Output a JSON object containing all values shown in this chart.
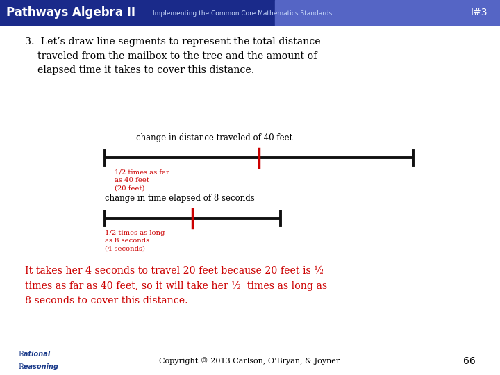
{
  "header_bg_left": "#1a2a8f",
  "header_bg_right": "#6070cf",
  "header_text": "Pathways Algebra II",
  "header_subtext": "Implementing the Common Core Mathematics Standards",
  "header_id": "I#3",
  "green_bar_color": "#1a6a1a",
  "left_bar_color": "#1a2a8f",
  "right_bar_color": "#1a2a8f",
  "right_bar_color2": "#1a6a1a",
  "body_bg": "#ffffff",
  "label1": "change in distance traveled of 40 feet",
  "label2": "change in time elapsed of 8 seconds",
  "red_color": "#cc0000",
  "line_color": "#111111",
  "tick_color": "#cc0000",
  "copyright": "Copyright © 2013 Carlson, O’Bryan, & Joyner",
  "page_num": "66"
}
